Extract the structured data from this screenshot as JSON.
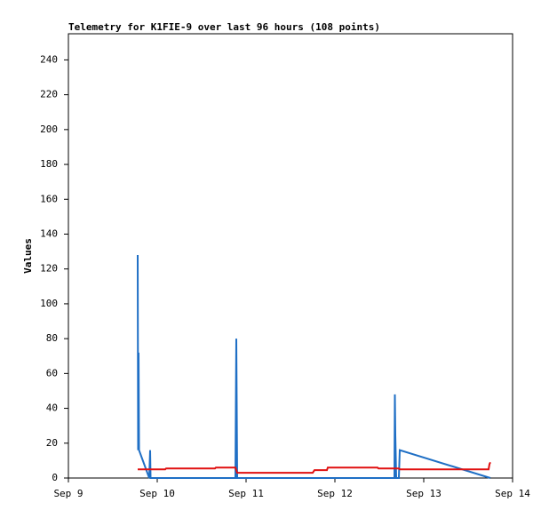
{
  "chart_data": {
    "type": "line",
    "title": "Telemetry for K1FIE-9 over last 96 hours (108 points)",
    "y_label": "Values",
    "xlim": [
      9,
      14
    ],
    "xticks": [
      {
        "value": 9,
        "label": "Sep 9"
      },
      {
        "value": 10,
        "label": "Sep 10"
      },
      {
        "value": 11,
        "label": "Sep 11"
      },
      {
        "value": 12,
        "label": "Sep 12"
      },
      {
        "value": 13,
        "label": "Sep 13"
      },
      {
        "value": 14,
        "label": "Sep 14"
      }
    ],
    "ylim": [
      0,
      255
    ],
    "yticks": [
      0,
      20,
      40,
      60,
      80,
      100,
      120,
      140,
      160,
      180,
      200,
      220,
      240
    ],
    "grid": false,
    "series": [
      {
        "color": "#1f6fc5",
        "x": [
          9.78,
          9.785,
          9.79,
          9.795,
          9.91,
          9.92,
          9.925,
          10.88,
          10.885,
          10.89,
          10.9,
          12.67,
          12.675,
          12.68,
          12.69,
          12.72,
          12.73,
          13.75
        ],
        "values": [
          128,
          16,
          72,
          16,
          0,
          16,
          0,
          0,
          40,
          80,
          0,
          0,
          48,
          25,
          0,
          0,
          16,
          0
        ]
      },
      {
        "color": "#e01010",
        "x": [
          9.78,
          10.09,
          10.1,
          10.65,
          10.66,
          10.88,
          10.9,
          11.75,
          11.77,
          11.91,
          11.92,
          12.48,
          12.49,
          12.72,
          12.73,
          13.73,
          13.74,
          13.75
        ],
        "values": [
          5,
          5,
          5.5,
          5.5,
          6,
          6,
          3,
          3,
          4.5,
          4.5,
          6,
          6,
          5.5,
          5.5,
          5,
          5,
          8,
          9
        ]
      }
    ]
  }
}
